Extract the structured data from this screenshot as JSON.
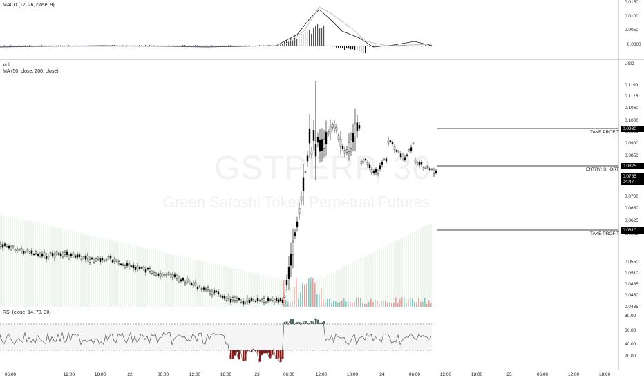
{
  "macd": {
    "legend": "MACD (12, 26, close, 9)",
    "ticks": [
      "0.0150",
      "0.0100",
      "0.0050",
      "−0.0000"
    ]
  },
  "main": {
    "legend_vol": "Vol",
    "legend_ma": "MA (50, close, 200, close)",
    "currency": "USD",
    "watermark_symbol": "GSTPERP, 30",
    "watermark_name": "Green Satoshi Token Perpetual Futures",
    "ticks": [
      "0.1190",
      "0.1125",
      "0.1060",
      "0.1000",
      "0.0950",
      "0.0900",
      "0.0850",
      "0.0800",
      "0.0750",
      "0.0700",
      "0.0660",
      "0.0625",
      "0.0585",
      "0.0550",
      "0.0510",
      "0.0485",
      "0.0460",
      "0.0435"
    ],
    "tp_upper": {
      "label": "TAKE PROFIT",
      "price": "0.0980"
    },
    "entry": {
      "label": "ENTRY: SHORT",
      "price": "0.0825"
    },
    "tp_lower": {
      "label": "TAKE PROFIT",
      "price": "0.0610"
    },
    "last_price": "0.0785",
    "countdown": "04:47"
  },
  "rsi": {
    "legend": "RSI (close, 14, 70, 30)",
    "ticks": [
      "80.00",
      "60.00",
      "40.00",
      "20.00"
    ]
  },
  "time_axis": [
    "06:00",
    "12:00",
    "18:00",
    "22",
    "06:00",
    "12:00",
    "18:00",
    "23",
    "06:00",
    "12:00",
    "18:00",
    "24",
    "06:00",
    "12:00",
    "18:00",
    "25",
    "06:00",
    "12:00",
    "18:00",
    "26"
  ],
  "colors": {
    "up": "#26a69a",
    "down": "#ef5350",
    "candle": "#000000",
    "rsi_fill_low": "#8b1a1a",
    "rsi_fill_high": "#4a6b5d",
    "vol_band": "#c8e6c9"
  }
}
